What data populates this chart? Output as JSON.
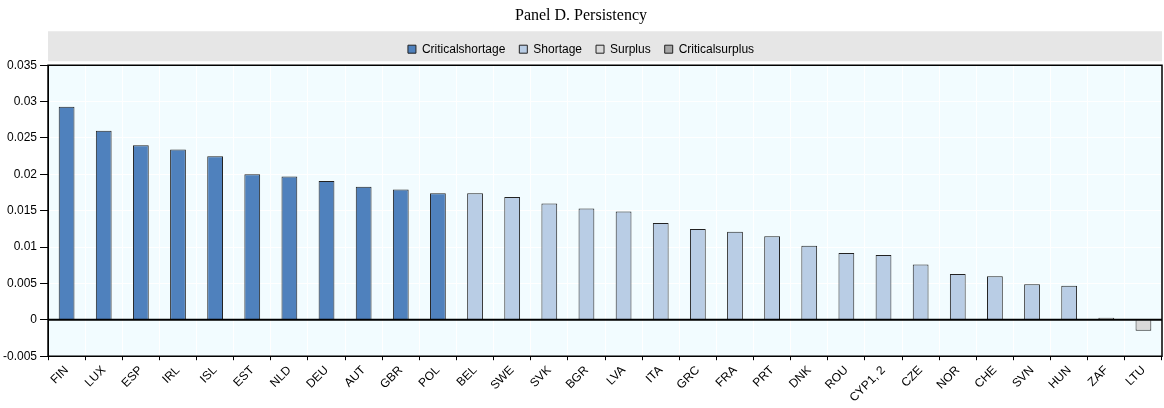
{
  "chart_data": {
    "type": "bar",
    "title": "Panel D. Persistency",
    "categories": [
      "FIN",
      "LUX",
      "ESP",
      "IRL",
      "ISL",
      "EST",
      "NLD",
      "DEU",
      "AUT",
      "GBR",
      "POL",
      "BEL",
      "SWE",
      "SVK",
      "BGR",
      "LVA",
      "ITA",
      "GRC",
      "FRA",
      "PRT",
      "DNK",
      "ROU",
      "CYP1, 2",
      "CZE",
      "NOR",
      "CHE",
      "SVN",
      "HUN",
      "ZAF",
      "LTU"
    ],
    "series": [
      {
        "name": "Criticalshortage",
        "color": "#4f81bd",
        "values": [
          0.0293,
          0.026,
          0.024,
          0.0234,
          0.0225,
          0.02,
          0.0197,
          0.0191,
          0.0183,
          0.0179,
          0.0174,
          null,
          null,
          null,
          null,
          null,
          null,
          null,
          null,
          null,
          null,
          null,
          null,
          null,
          null,
          null,
          null,
          null,
          null,
          null
        ]
      },
      {
        "name": "Shortage",
        "color": "#b9cde5",
        "values": [
          null,
          null,
          null,
          null,
          null,
          null,
          null,
          null,
          null,
          null,
          null,
          0.0174,
          0.0169,
          0.016,
          0.0153,
          0.0149,
          0.0133,
          0.0125,
          0.0121,
          0.0115,
          0.0102,
          0.0092,
          0.0089,
          0.0076,
          0.0063,
          0.006,
          0.0049,
          0.0047,
          null,
          null
        ]
      },
      {
        "name": "Surplus",
        "color": "#d9d9d9",
        "values": [
          null,
          null,
          null,
          null,
          null,
          null,
          null,
          null,
          null,
          null,
          null,
          null,
          null,
          null,
          null,
          null,
          null,
          null,
          null,
          null,
          null,
          null,
          null,
          null,
          null,
          null,
          null,
          null,
          0.0003,
          -0.0015
        ]
      },
      {
        "name": "Criticalsurplus",
        "color": "#a6a6a6",
        "values": [
          null,
          null,
          null,
          null,
          null,
          null,
          null,
          null,
          null,
          null,
          null,
          null,
          null,
          null,
          null,
          null,
          null,
          null,
          null,
          null,
          null,
          null,
          null,
          null,
          null,
          null,
          null,
          null,
          null,
          null
        ]
      }
    ],
    "ylim": [
      -0.005,
      0.035
    ],
    "yticks": [
      -0.005,
      0,
      0.005,
      0.01,
      0.015,
      0.02,
      0.025,
      0.03,
      0.035
    ],
    "grid": true,
    "legend": "top"
  }
}
